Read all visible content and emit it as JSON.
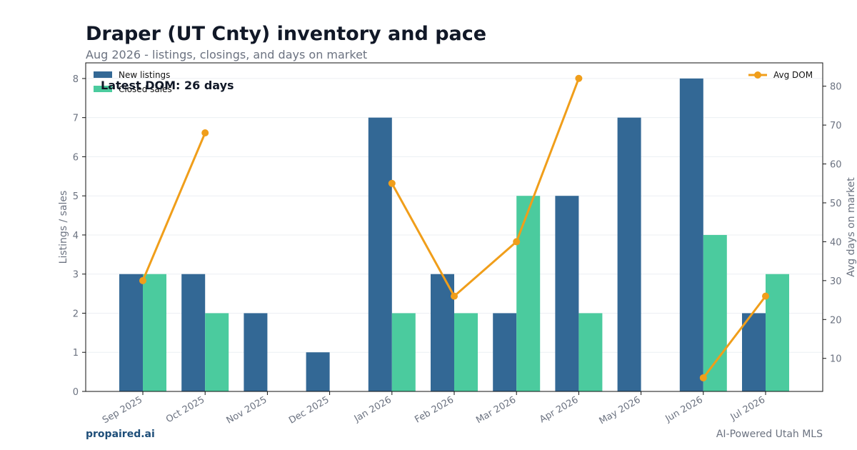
{
  "header": {
    "title": "Draper (UT Cnty) inventory and pace",
    "subtitle": "Aug 2026 - listings, closings, and days on market"
  },
  "footer": {
    "brand": "propaired.ai",
    "tagline": "AI-Powered Utah MLS"
  },
  "colors": {
    "new_listings": "#336895",
    "closed_sales": "#4bcb9e",
    "avg_dom": "#f09e1a"
  },
  "chart_data": {
    "type": "bar",
    "categories": [
      "Sep 2025",
      "Oct 2025",
      "Nov 2025",
      "Dec 2025",
      "Jan 2026",
      "Feb 2026",
      "Mar 2026",
      "Apr 2026",
      "May 2026",
      "Jun 2026",
      "Jul 2026"
    ],
    "series": [
      {
        "name": "New listings",
        "type": "bar",
        "axis": "left",
        "values": [
          3,
          3,
          2,
          1,
          7,
          3,
          2,
          5,
          7,
          8,
          2
        ]
      },
      {
        "name": "Closed sales",
        "type": "bar",
        "axis": "left",
        "values": [
          3,
          2,
          0,
          0,
          2,
          2,
          5,
          2,
          0,
          4,
          3
        ]
      },
      {
        "name": "Avg DOM",
        "type": "line",
        "axis": "right",
        "values": [
          30,
          68,
          null,
          null,
          55,
          26,
          40,
          82,
          null,
          5,
          26
        ]
      }
    ],
    "ylabel": "Listings / sales",
    "y2label": "Avg days on market",
    "ylim": [
      0,
      8.4
    ],
    "y2lim": [
      1.5,
      86
    ],
    "yticks": [
      0,
      1,
      2,
      3,
      4,
      5,
      6,
      7,
      8
    ],
    "y2ticks": [
      10,
      20,
      30,
      40,
      50,
      60,
      70,
      80
    ],
    "annotation": "Latest DOM: 26 days",
    "legend_left": "top-left",
    "legend_right": "top-right",
    "grid": true
  }
}
